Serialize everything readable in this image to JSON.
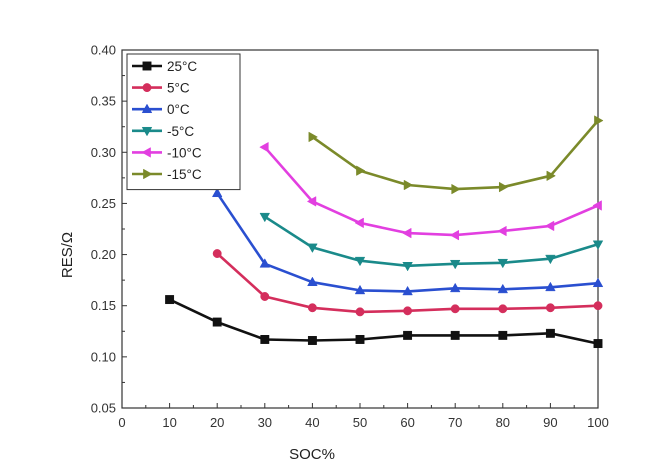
{
  "chart_data": {
    "type": "line",
    "xlabel": "SOC%",
    "ylabel": "RES/Ω",
    "xlim": [
      0,
      100
    ],
    "ylim": [
      0.05,
      0.4
    ],
    "x_ticks": [
      "0",
      "10",
      "20",
      "30",
      "40",
      "50",
      "60",
      "70",
      "80",
      "90",
      "100"
    ],
    "y_ticks": [
      "0.05",
      "0.10",
      "0.15",
      "0.20",
      "0.25",
      "0.30",
      "0.35",
      "0.40"
    ],
    "grid": false,
    "legend_position": "top-left",
    "series": [
      {
        "name": "25°C",
        "color": "#111111",
        "marker": "square",
        "x": [
          10,
          20,
          30,
          40,
          50,
          60,
          70,
          80,
          90,
          100
        ],
        "y": [
          0.156,
          0.134,
          0.117,
          0.116,
          0.117,
          0.121,
          0.121,
          0.121,
          0.123,
          0.113
        ]
      },
      {
        "name": "5°C",
        "color": "#d42e5c",
        "marker": "circle",
        "x": [
          20,
          30,
          40,
          50,
          60,
          70,
          80,
          90,
          100
        ],
        "y": [
          0.201,
          0.159,
          0.148,
          0.144,
          0.145,
          0.147,
          0.147,
          0.148,
          0.15
        ]
      },
      {
        "name": "0°C",
        "color": "#2a4fd0",
        "marker": "triangle-up",
        "x": [
          20,
          30,
          40,
          50,
          60,
          70,
          80,
          90,
          100
        ],
        "y": [
          0.26,
          0.191,
          0.173,
          0.165,
          0.164,
          0.167,
          0.166,
          0.168,
          0.172
        ]
      },
      {
        "name": "-5°C",
        "color": "#1a8a8a",
        "marker": "triangle-down",
        "x": [
          30,
          40,
          50,
          60,
          70,
          80,
          90,
          100
        ],
        "y": [
          0.237,
          0.207,
          0.194,
          0.189,
          0.191,
          0.192,
          0.196,
          0.21
        ]
      },
      {
        "name": "-10°C",
        "color": "#e23fe0",
        "marker": "triangle-left",
        "x": [
          30,
          40,
          50,
          60,
          70,
          80,
          90,
          100
        ],
        "y": [
          0.305,
          0.252,
          0.231,
          0.221,
          0.219,
          0.223,
          0.228,
          0.248
        ]
      },
      {
        "name": "-15°C",
        "color": "#7b8a2a",
        "marker": "triangle-right",
        "x": [
          40,
          50,
          60,
          70,
          80,
          90,
          100
        ],
        "y": [
          0.315,
          0.282,
          0.268,
          0.264,
          0.266,
          0.277,
          0.331
        ]
      }
    ]
  }
}
